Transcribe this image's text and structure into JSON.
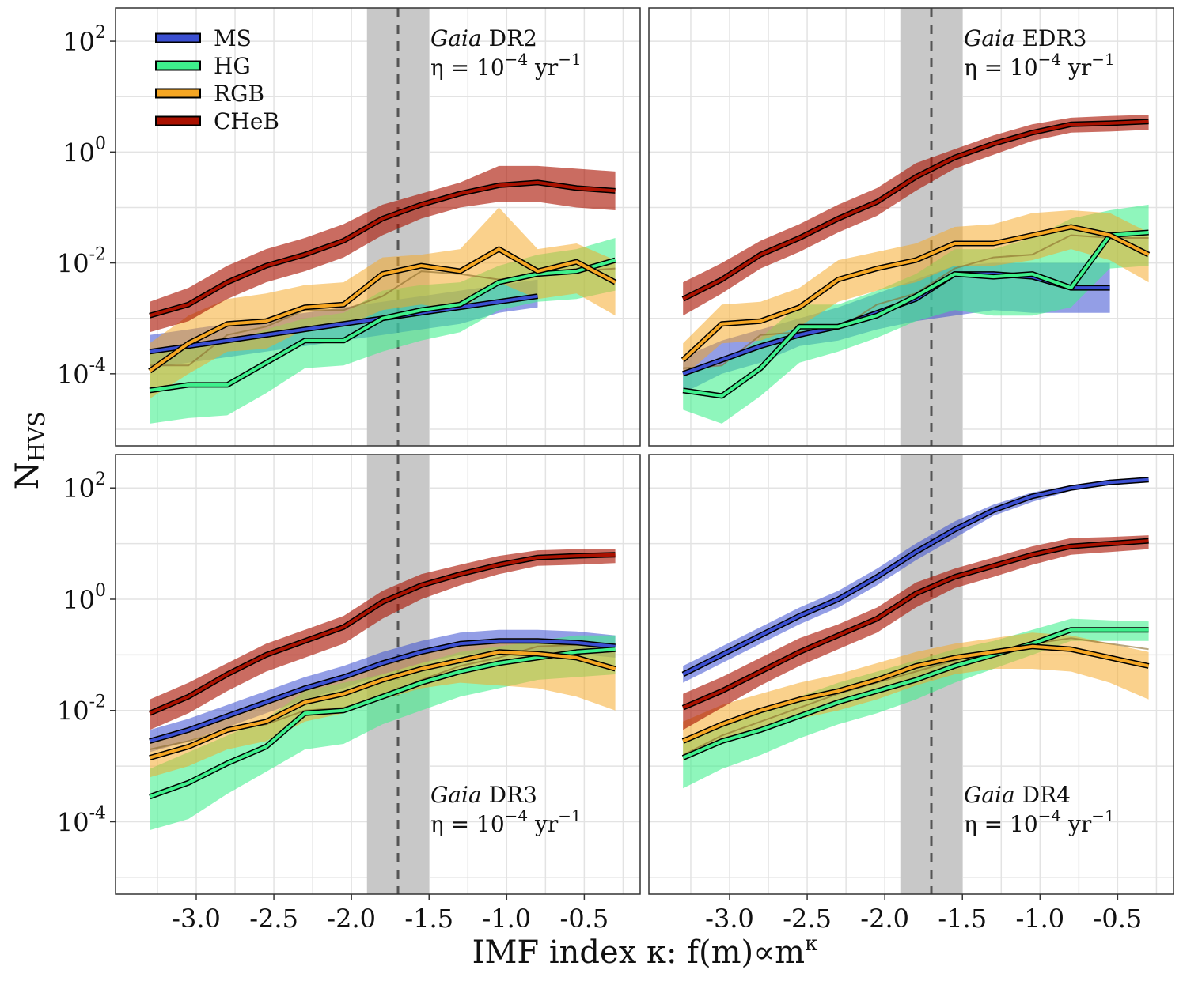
{
  "figure": {
    "ylabel": "N",
    "ylabel_sub": "HVS",
    "xlabel": "IMF index κ: f(m)∝m",
    "xlabel_sup": "κ"
  },
  "legend": [
    {
      "name": "MS",
      "color": "#3b4fd1"
    },
    {
      "name": "HG",
      "color": "#3ef08c"
    },
    {
      "name": "RGB",
      "color": "#f5a623"
    },
    {
      "name": "CHeB",
      "color": "#aa1100"
    }
  ],
  "chart_data": [
    {
      "type": "line",
      "panel": "top-left",
      "survey_italic": "Gaia",
      "survey_release": "DR2",
      "rate_text": "η = 10",
      "rate_exp": "−4",
      "rate_unit": " yr",
      "rate_unit_exp": "−1",
      "annotation_position": "top",
      "xlim": [
        -3.52,
        -0.14
      ],
      "ylim": [
        -5.3,
        2.6
      ],
      "y_scale": "log10",
      "y_ticks": [
        -4,
        -2,
        0,
        2
      ],
      "x_ticks": [
        -3.0,
        -2.5,
        -2.0,
        -1.5,
        -1.0,
        -0.5
      ],
      "x_tick_labels": [
        "-3.0",
        "-2.5",
        "-2.0",
        "-1.5",
        "-1.0",
        "-0.5"
      ],
      "show_x_ticks": false,
      "vline_x": -1.7,
      "band_x": [
        -1.9,
        -1.5
      ],
      "x": [
        -3.3,
        -3.05,
        -2.8,
        -2.55,
        -2.3,
        -2.05,
        -1.8,
        -1.55,
        -1.3,
        -1.05,
        -0.8,
        -0.55,
        -0.3
      ],
      "series": [
        {
          "name": "MS",
          "log_values": [
            -3.6,
            -3.5,
            -3.4,
            -3.3,
            -3.2,
            -3.1,
            -3.0,
            -2.9,
            -2.8,
            -2.7,
            -2.6
          ],
          "log_low": [
            -3.9,
            -3.8,
            -3.7,
            -3.6,
            -3.5,
            -3.4,
            -3.3,
            -3.2,
            -3.1,
            -2.9,
            -2.8
          ],
          "log_high": [
            -3.3,
            -3.2,
            -3.1,
            -3.0,
            -2.9,
            -2.8,
            -2.7,
            -2.6,
            -2.5,
            -2.4,
            -2.3
          ]
        },
        {
          "name": "HG",
          "log_values": [
            -4.3,
            -4.2,
            -4.2,
            -3.8,
            -3.4,
            -3.4,
            -3.0,
            -2.85,
            -2.75,
            -2.35,
            -2.2,
            -2.15,
            -1.95
          ],
          "log_low": [
            -4.9,
            -4.8,
            -4.75,
            -4.35,
            -3.9,
            -3.85,
            -3.6,
            -3.4,
            -3.25,
            -2.85,
            -2.7,
            -2.65,
            -2.5
          ],
          "log_high": [
            -3.6,
            -3.5,
            -3.45,
            -3.2,
            -3.0,
            -2.9,
            -2.5,
            -2.4,
            -2.35,
            -2.05,
            -1.85,
            -1.75,
            -1.55
          ]
        },
        {
          "name": "RGB",
          "log_values": [
            -3.95,
            -3.45,
            -3.1,
            -3.05,
            -2.8,
            -2.75,
            -2.2,
            -2.05,
            -2.15,
            -1.75,
            -2.15,
            -1.98,
            -2.35
          ],
          "log_low": [
            -4.45,
            -4.0,
            -3.6,
            -3.55,
            -3.2,
            -3.15,
            -2.85,
            -2.75,
            -2.85,
            -2.35,
            -2.65,
            -2.55,
            -2.95
          ],
          "log_high": [
            -3.45,
            -2.95,
            -2.65,
            -2.55,
            -2.4,
            -2.35,
            -1.9,
            -1.85,
            -1.75,
            -1.0,
            -1.75,
            -1.65,
            -1.95
          ]
        },
        {
          "name": "CHeB",
          "log_values": [
            -2.95,
            -2.75,
            -2.35,
            -2.05,
            -1.85,
            -1.6,
            -1.2,
            -0.95,
            -0.75,
            -0.6,
            -0.55,
            -0.65,
            -0.7
          ],
          "log_low": [
            -3.25,
            -3.05,
            -2.65,
            -2.35,
            -2.15,
            -1.9,
            -1.5,
            -1.2,
            -1.0,
            -0.9,
            -0.9,
            -1.0,
            -1.05
          ],
          "log_high": [
            -2.7,
            -2.45,
            -2.05,
            -1.75,
            -1.55,
            -1.3,
            -0.95,
            -0.75,
            -0.55,
            -0.25,
            -0.25,
            -0.3,
            -0.35
          ]
        }
      ],
      "shadow_series": [
        {
          "name": "RGB-subtrack",
          "log_values": [
            -3.85,
            -3.85,
            -3.3,
            -3.15,
            -2.85,
            -2.85,
            -2.6,
            -2.15,
            -2.2,
            -2.3,
            -2.2,
            -2.15,
            -2.1
          ]
        }
      ]
    },
    {
      "type": "line",
      "panel": "top-right",
      "survey_italic": "Gaia",
      "survey_release": "EDR3",
      "rate_text": "η = 10",
      "rate_exp": "−4",
      "rate_unit": " yr",
      "rate_unit_exp": "−1",
      "annotation_position": "top",
      "xlim": [
        -3.52,
        -0.14
      ],
      "ylim": [
        -5.3,
        2.6
      ],
      "y_scale": "log10",
      "y_ticks": [
        -4,
        -2,
        0,
        2
      ],
      "x_ticks": [
        -3.0,
        -2.5,
        -2.0,
        -1.5,
        -1.0,
        -0.5
      ],
      "x_tick_labels": [
        "-3.0",
        "-2.5",
        "-2.0",
        "-1.5",
        "-1.0",
        "-0.5"
      ],
      "show_x_ticks": false,
      "vline_x": -1.7,
      "band_x": [
        -1.9,
        -1.5
      ],
      "x": [
        -3.3,
        -3.05,
        -2.8,
        -2.55,
        -2.3,
        -2.05,
        -1.8,
        -1.55,
        -1.3,
        -1.05,
        -0.8,
        -0.55,
        -0.3
      ],
      "series": [
        {
          "name": "MS",
          "log_values": [
            -4.0,
            -3.75,
            -3.5,
            -3.3,
            -3.15,
            -2.9,
            -2.65,
            -2.2,
            -2.2,
            -2.25,
            -2.45,
            -2.45
          ],
          "log_low": [
            -4.35,
            -4.0,
            -3.8,
            -3.5,
            -3.4,
            -3.2,
            -3.05,
            -2.95,
            -2.85,
            -2.9,
            -2.9,
            -2.9
          ],
          "log_high": [
            -3.7,
            -3.4,
            -3.2,
            -3.0,
            -2.8,
            -2.55,
            -2.3,
            -2.05,
            -2.0,
            -2.0,
            -2.0,
            -2.0
          ]
        },
        {
          "name": "HG",
          "log_values": [
            -4.3,
            -4.4,
            -3.9,
            -3.15,
            -3.15,
            -2.95,
            -2.6,
            -2.2,
            -2.25,
            -2.2,
            -2.45,
            -1.5,
            -1.45
          ],
          "log_low": [
            -4.65,
            -4.9,
            -4.4,
            -3.8,
            -3.6,
            -3.35,
            -3.05,
            -2.85,
            -2.95,
            -2.95,
            -2.8,
            -2.1,
            -2.05
          ],
          "log_high": [
            -3.95,
            -3.85,
            -3.35,
            -2.75,
            -2.75,
            -2.5,
            -2.2,
            -1.75,
            -1.75,
            -1.55,
            -1.2,
            -1.05,
            -0.95
          ]
        },
        {
          "name": "RGB",
          "log_values": [
            -3.75,
            -3.1,
            -3.05,
            -2.8,
            -2.3,
            -2.1,
            -1.95,
            -1.65,
            -1.65,
            -1.5,
            -1.35,
            -1.5,
            -1.85
          ],
          "log_low": [
            -4.05,
            -3.45,
            -3.4,
            -3.15,
            -2.7,
            -2.5,
            -2.35,
            -2.05,
            -2.05,
            -1.95,
            -1.75,
            -1.95,
            -2.35
          ],
          "log_high": [
            -3.45,
            -2.75,
            -2.7,
            -2.45,
            -1.95,
            -1.8,
            -1.65,
            -1.35,
            -1.3,
            -1.1,
            -1.05,
            -1.1,
            -1.45
          ]
        },
        {
          "name": "CHeB",
          "log_values": [
            -2.65,
            -2.3,
            -1.85,
            -1.55,
            -1.2,
            -0.9,
            -0.45,
            -0.1,
            0.15,
            0.35,
            0.5,
            0.52,
            0.55
          ],
          "log_low": [
            -2.95,
            -2.55,
            -2.1,
            -1.8,
            -1.45,
            -1.15,
            -0.7,
            -0.3,
            -0.05,
            0.2,
            0.35,
            0.37,
            0.4
          ],
          "log_high": [
            -2.35,
            -2.0,
            -1.6,
            -1.3,
            -0.95,
            -0.65,
            -0.2,
            0.05,
            0.3,
            0.5,
            0.62,
            0.65,
            0.67
          ]
        }
      ],
      "shadow_series": [
        {
          "name": "RGB-subtrack",
          "log_values": [
            -3.9,
            -3.85,
            -3.3,
            -3.25,
            -3.2,
            -2.75,
            -2.55,
            -2.1,
            -1.9,
            -1.85,
            -1.5,
            -1.55,
            -1.55
          ]
        }
      ]
    },
    {
      "type": "line",
      "panel": "bottom-left",
      "survey_italic": "Gaia",
      "survey_release": "DR3",
      "rate_text": "η = 10",
      "rate_exp": "−4",
      "rate_unit": " yr",
      "rate_unit_exp": "−1",
      "annotation_position": "bottom",
      "xlim": [
        -3.52,
        -0.14
      ],
      "ylim": [
        -5.3,
        2.6
      ],
      "y_scale": "log10",
      "y_ticks": [
        -4,
        -2,
        0,
        2
      ],
      "x_ticks": [
        -3.0,
        -2.5,
        -2.0,
        -1.5,
        -1.0,
        -0.5
      ],
      "x_tick_labels": [
        "-3.0",
        "-2.5",
        "-2.0",
        "-1.5",
        "-1.0",
        "-0.5"
      ],
      "show_x_ticks": true,
      "vline_x": -1.7,
      "band_x": [
        -1.9,
        -1.5
      ],
      "x": [
        -3.3,
        -3.05,
        -2.8,
        -2.55,
        -2.3,
        -2.05,
        -1.8,
        -1.55,
        -1.3,
        -1.05,
        -0.8,
        -0.55,
        -0.3
      ],
      "series": [
        {
          "name": "MS",
          "log_values": [
            -2.55,
            -2.35,
            -2.1,
            -1.85,
            -1.6,
            -1.4,
            -1.15,
            -0.95,
            -0.8,
            -0.75,
            -0.75,
            -0.78,
            -0.85
          ],
          "log_low": [
            -2.75,
            -2.55,
            -2.3,
            -2.05,
            -1.8,
            -1.6,
            -1.35,
            -1.15,
            -1.0,
            -0.95,
            -0.95,
            -0.98,
            -1.05
          ],
          "log_high": [
            -2.35,
            -2.15,
            -1.9,
            -1.65,
            -1.4,
            -1.2,
            -0.95,
            -0.75,
            -0.6,
            -0.55,
            -0.55,
            -0.58,
            -0.65
          ]
        },
        {
          "name": "HG",
          "log_values": [
            -3.55,
            -3.3,
            -2.95,
            -2.65,
            -2.05,
            -2.0,
            -1.75,
            -1.5,
            -1.3,
            -1.15,
            -1.05,
            -0.95,
            -0.9
          ],
          "log_low": [
            -4.15,
            -3.95,
            -3.5,
            -3.1,
            -2.7,
            -2.6,
            -2.25,
            -2.0,
            -1.75,
            -1.6,
            -1.45,
            -1.4,
            -1.35
          ],
          "log_high": [
            -3.05,
            -2.75,
            -2.45,
            -2.15,
            -1.65,
            -1.5,
            -1.35,
            -1.15,
            -0.95,
            -0.85,
            -0.75,
            -0.65,
            -0.65
          ]
        },
        {
          "name": "RGB",
          "log_values": [
            -2.85,
            -2.65,
            -2.35,
            -2.2,
            -1.85,
            -1.7,
            -1.45,
            -1.25,
            -1.1,
            -0.95,
            -0.98,
            -1.05,
            -1.25
          ],
          "log_low": [
            -3.2,
            -3.0,
            -2.7,
            -2.55,
            -2.2,
            -2.05,
            -1.8,
            -1.6,
            -1.5,
            -1.55,
            -1.6,
            -1.75,
            -2.0
          ],
          "log_high": [
            -2.5,
            -2.3,
            -2.05,
            -1.9,
            -1.55,
            -1.4,
            -1.15,
            -0.95,
            -0.85,
            -0.7,
            -0.7,
            -0.75,
            -0.9
          ]
        },
        {
          "name": "CHeB",
          "log_values": [
            -2.05,
            -1.75,
            -1.35,
            -1.0,
            -0.75,
            -0.5,
            -0.05,
            0.25,
            0.45,
            0.62,
            0.75,
            0.78,
            0.8
          ],
          "log_low": [
            -2.35,
            -2.05,
            -1.65,
            -1.3,
            -1.05,
            -0.8,
            -0.35,
            0.0,
            0.25,
            0.45,
            0.6,
            0.62,
            0.65
          ],
          "log_high": [
            -1.8,
            -1.5,
            -1.15,
            -0.8,
            -0.55,
            -0.3,
            0.15,
            0.45,
            0.62,
            0.78,
            0.88,
            0.9,
            0.9
          ]
        }
      ],
      "shadow_series": [
        {
          "name": "RGB-subtrack",
          "log_values": [
            -2.7,
            -2.55,
            -2.35,
            -2.25,
            -2.0,
            -1.95,
            -1.75,
            -1.45,
            -1.2,
            -1.05,
            -0.85,
            -0.82,
            -0.8
          ]
        }
      ]
    },
    {
      "type": "line",
      "panel": "bottom-right",
      "survey_italic": "Gaia",
      "survey_release": "DR4",
      "rate_text": "η = 10",
      "rate_exp": "−4",
      "rate_unit": " yr",
      "rate_unit_exp": "−1",
      "annotation_position": "bottom",
      "xlim": [
        -3.52,
        -0.14
      ],
      "ylim": [
        -5.3,
        2.6
      ],
      "y_scale": "log10",
      "y_ticks": [
        -4,
        -2,
        0,
        2
      ],
      "x_ticks": [
        -3.0,
        -2.5,
        -2.0,
        -1.5,
        -1.0,
        -0.5
      ],
      "x_tick_labels": [
        "-3.0",
        "-2.5",
        "-2.0",
        "-1.5",
        "-1.0",
        "-0.5"
      ],
      "show_x_ticks": true,
      "vline_x": -1.7,
      "band_x": [
        -1.9,
        -1.5
      ],
      "x": [
        -3.3,
        -3.05,
        -2.8,
        -2.55,
        -2.3,
        -2.05,
        -1.8,
        -1.55,
        -1.3,
        -1.05,
        -0.8,
        -0.55,
        -0.3
      ],
      "series": [
        {
          "name": "MS",
          "log_values": [
            -1.35,
            -1.0,
            -0.65,
            -0.3,
            0.0,
            0.4,
            0.85,
            1.25,
            1.6,
            1.85,
            2.0,
            2.1,
            2.15
          ],
          "log_low": [
            -1.5,
            -1.15,
            -0.8,
            -0.45,
            -0.15,
            0.25,
            0.7,
            1.1,
            1.5,
            1.75,
            1.95,
            2.05,
            2.1
          ],
          "log_high": [
            -1.2,
            -0.85,
            -0.5,
            -0.15,
            0.15,
            0.55,
            1.0,
            1.4,
            1.7,
            1.92,
            2.05,
            2.15,
            2.2
          ]
        },
        {
          "name": "HG",
          "log_values": [
            -2.85,
            -2.55,
            -2.35,
            -2.1,
            -1.85,
            -1.65,
            -1.45,
            -1.2,
            -1.0,
            -0.8,
            -0.55,
            -0.55,
            -0.55
          ],
          "log_low": [
            -3.4,
            -3.05,
            -2.8,
            -2.5,
            -2.25,
            -2.05,
            -1.8,
            -1.5,
            -1.25,
            -1.0,
            -0.75,
            -0.75,
            -0.75
          ],
          "log_high": [
            -2.5,
            -2.2,
            -2.0,
            -1.75,
            -1.5,
            -1.3,
            -1.1,
            -0.9,
            -0.75,
            -0.55,
            -0.35,
            -0.38,
            -0.4
          ]
        },
        {
          "name": "RGB",
          "log_values": [
            -2.55,
            -2.25,
            -2.0,
            -1.8,
            -1.65,
            -1.45,
            -1.2,
            -1.05,
            -0.95,
            -0.85,
            -0.9,
            -1.05,
            -1.2
          ],
          "log_low": [
            -2.9,
            -2.6,
            -2.35,
            -2.15,
            -2.0,
            -1.8,
            -1.55,
            -1.35,
            -1.25,
            -1.25,
            -1.3,
            -1.5,
            -1.8
          ],
          "log_high": [
            -2.2,
            -1.9,
            -1.7,
            -1.5,
            -1.35,
            -1.15,
            -0.95,
            -0.8,
            -0.7,
            -0.6,
            -0.65,
            -0.8,
            -0.95
          ]
        },
        {
          "name": "CHeB",
          "log_values": [
            -1.95,
            -1.65,
            -1.3,
            -0.95,
            -0.65,
            -0.35,
            0.1,
            0.4,
            0.6,
            0.8,
            0.95,
            1.0,
            1.05
          ],
          "log_low": [
            -2.35,
            -1.95,
            -1.55,
            -1.2,
            -0.9,
            -0.6,
            -0.15,
            0.2,
            0.4,
            0.62,
            0.8,
            0.85,
            0.9
          ],
          "log_high": [
            -1.7,
            -1.4,
            -1.05,
            -0.7,
            -0.45,
            -0.15,
            0.3,
            0.55,
            0.75,
            0.95,
            1.1,
            1.12,
            1.15
          ]
        }
      ],
      "shadow_series": [
        {
          "name": "RGB-subtrack",
          "log_values": [
            -2.8,
            -2.45,
            -2.2,
            -1.95,
            -1.7,
            -1.5,
            -1.3,
            -1.1,
            -0.95,
            -0.8,
            -0.7,
            -0.8,
            -0.9
          ]
        }
      ]
    }
  ]
}
